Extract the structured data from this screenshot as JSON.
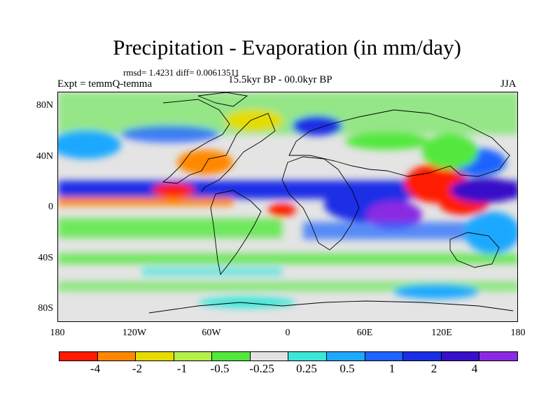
{
  "title": "Precipitation - Evaporation (in mm/day)",
  "stats": "rmsd= 1.4231  diff= 0.00613511",
  "experiment": "Expt = temmQ-temma",
  "period": "15.5kyr BP - 00.0kyr BP",
  "season": "JJA",
  "map": {
    "projection": "cylindrical-equidistant",
    "lon_range": [
      -180,
      180
    ],
    "lat_range": [
      -90,
      90
    ],
    "y_ticks": [
      "80N",
      "40N",
      "0",
      "40S",
      "80S"
    ],
    "x_ticks": [
      "180",
      "120W",
      "60W",
      "0",
      "60E",
      "120E",
      "180"
    ]
  },
  "colorbar": {
    "colors": [
      "#ff1a00",
      "#ff8800",
      "#e6dc00",
      "#b4f04a",
      "#52e83c",
      "#e2e2e2",
      "#3ce6d8",
      "#1ea8ff",
      "#1e64ff",
      "#1a2ee6",
      "#3810c8",
      "#8a2be2"
    ],
    "labels": [
      "-4",
      "-2",
      "-1",
      "-0.5",
      "-0.25",
      "0.25",
      "0.5",
      "1",
      "2",
      "4"
    ]
  }
}
